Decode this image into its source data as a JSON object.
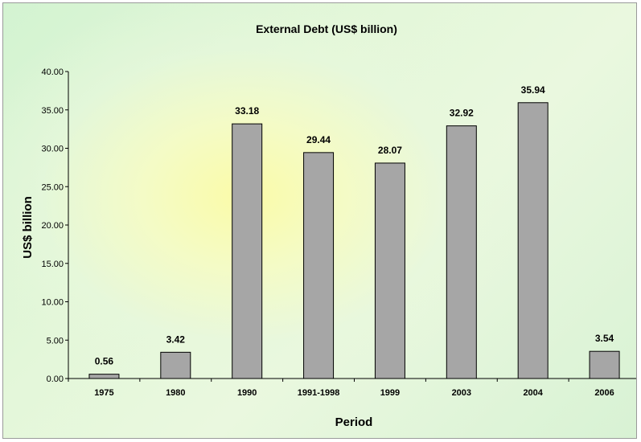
{
  "chart_data": {
    "type": "bar",
    "title": "External Debt (US$ billion)",
    "xlabel": "Period",
    "ylabel": "US$ billion",
    "categories": [
      "1975",
      "1980",
      "1990",
      "1991-1998",
      "1999",
      "2003",
      "2004",
      "2006"
    ],
    "values": [
      0.56,
      3.42,
      33.18,
      29.44,
      28.07,
      32.92,
      35.94,
      3.54
    ],
    "data_labels": [
      "0.56",
      "3.42",
      "33.18",
      "29.44",
      "28.07",
      "32.92",
      "35.94",
      "3.54"
    ],
    "ylim": [
      0,
      40
    ],
    "yticks": [
      0,
      5,
      10,
      15,
      20,
      25,
      30,
      35,
      40
    ],
    "ytick_labels": [
      "0.00",
      "5.00",
      "10.00",
      "15.00",
      "20.00",
      "25.00",
      "30.00",
      "35.00",
      "40.00"
    ],
    "grid": false,
    "legend": "none",
    "bar_color": "#a6a6a6",
    "bar_border_color": "#000000"
  }
}
